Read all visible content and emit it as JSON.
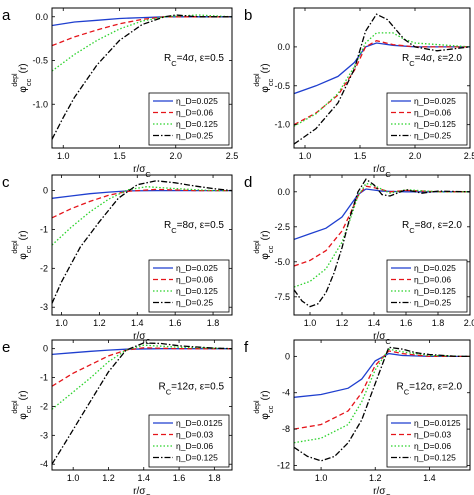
{
  "line_styles": {
    "solid": {
      "color": "#1f3fcf",
      "dash": ""
    },
    "dash": {
      "color": "#e5141a",
      "dash": "5,3"
    },
    "dot": {
      "color": "#2bd22b",
      "dash": "1.5,2"
    },
    "dashdot": {
      "color": "#000000",
      "dash": "6,2,1.5,2"
    }
  },
  "chart_data": [
    {
      "panel": "a",
      "type": "line",
      "xlabel": "r/σ_C",
      "ylabel": "φ_cc^depl(r)",
      "xlim": [
        0.9,
        2.5
      ],
      "ylim": [
        -1.5,
        0.1
      ],
      "xticks": [
        1.0,
        1.5,
        2.0,
        2.5
      ],
      "xtick_labels": [
        "1.0",
        "1.5",
        "2.0",
        "2.5"
      ],
      "yticks": [
        0.0,
        -0.5,
        -1.0
      ],
      "ytick_labels": [
        "0.0",
        "-0.5",
        "-1.0"
      ],
      "annotation": "R_C=4σ, ε=0.5",
      "legend_position": "lower-right",
      "series": [
        {
          "name": "η_D=0.025",
          "style": "solid",
          "x": [
            0.9,
            1.1,
            1.3,
            1.5,
            1.7,
            1.9,
            2.2,
            2.5
          ],
          "y": [
            -0.1,
            -0.06,
            -0.04,
            -0.02,
            -0.01,
            0.0,
            0.0,
            0.0
          ]
        },
        {
          "name": "η_D=0.06",
          "style": "dash",
          "x": [
            0.9,
            1.1,
            1.3,
            1.5,
            1.7,
            1.9,
            2.2,
            2.5
          ],
          "y": [
            -0.33,
            -0.23,
            -0.15,
            -0.08,
            -0.03,
            0.0,
            0.0,
            0.0
          ]
        },
        {
          "name": "η_D=0.125",
          "style": "dot",
          "x": [
            0.9,
            1.1,
            1.3,
            1.5,
            1.7,
            1.9,
            2.2,
            2.5
          ],
          "y": [
            -0.62,
            -0.43,
            -0.27,
            -0.14,
            -0.05,
            0.0,
            0.02,
            0.0
          ]
        },
        {
          "name": "η_D=0.25",
          "style": "dashdot",
          "x": [
            0.9,
            1.0,
            1.1,
            1.3,
            1.5,
            1.7,
            1.9,
            2.0,
            2.2,
            2.5
          ],
          "y": [
            -1.4,
            -1.15,
            -0.92,
            -0.55,
            -0.27,
            -0.09,
            0.0,
            0.02,
            0.0,
            0.0
          ]
        }
      ]
    },
    {
      "panel": "b",
      "type": "line",
      "xlabel": "r/σ_C",
      "ylabel": "φ_cc^depl(r)",
      "xlim": [
        0.9,
        2.5
      ],
      "ylim": [
        -1.3,
        0.5
      ],
      "xticks": [
        1.0,
        1.5,
        2.0,
        2.5
      ],
      "xtick_labels": [
        "1.0",
        "1.5",
        "2.0",
        "2.5"
      ],
      "yticks": [
        0.0,
        -0.5,
        -1.0
      ],
      "ytick_labels": [
        "0.0",
        "-0.5",
        "-1.0"
      ],
      "annotation": "R_C=4σ, ε=2.0",
      "legend_position": "lower-right",
      "series": [
        {
          "name": "η_D=0.025",
          "style": "solid",
          "x": [
            0.9,
            1.1,
            1.3,
            1.45,
            1.55,
            1.65,
            1.8,
            2.0,
            2.5
          ],
          "y": [
            -0.6,
            -0.5,
            -0.38,
            -0.2,
            0.0,
            0.05,
            0.02,
            0.0,
            0.0
          ]
        },
        {
          "name": "η_D=0.06",
          "style": "dash",
          "x": [
            0.9,
            1.1,
            1.3,
            1.45,
            1.55,
            1.65,
            1.8,
            2.0,
            2.5
          ],
          "y": [
            -1.0,
            -0.85,
            -0.62,
            -0.3,
            0.0,
            0.08,
            0.03,
            0.0,
            0.0
          ]
        },
        {
          "name": "η_D=0.125",
          "style": "dot",
          "x": [
            0.9,
            1.1,
            1.3,
            1.45,
            1.55,
            1.65,
            1.8,
            1.9,
            2.0,
            2.5
          ],
          "y": [
            -1.02,
            -0.86,
            -0.6,
            -0.25,
            0.05,
            0.18,
            0.18,
            0.1,
            0.05,
            0.0
          ]
        },
        {
          "name": "η_D=0.25",
          "style": "dashdot",
          "x": [
            0.9,
            1.1,
            1.3,
            1.45,
            1.55,
            1.65,
            1.75,
            1.9,
            2.0,
            2.2,
            2.5
          ],
          "y": [
            -1.25,
            -1.05,
            -0.72,
            -0.28,
            0.2,
            0.42,
            0.35,
            0.1,
            0.0,
            -0.05,
            0.0
          ]
        }
      ]
    },
    {
      "panel": "c",
      "type": "line",
      "xlabel": "r/σ_C",
      "ylabel": "φ_cc^depl(r)",
      "xlim": [
        0.95,
        1.9
      ],
      "ylim": [
        -3.2,
        0.4
      ],
      "xticks": [
        1.0,
        1.2,
        1.4,
        1.6,
        1.8
      ],
      "xtick_labels": [
        "1.0",
        "1.2",
        "1.4",
        "1.6",
        "1.8"
      ],
      "yticks": [
        0,
        -1,
        -2,
        -3
      ],
      "ytick_labels": [
        "0",
        "-1",
        "-2",
        "-3"
      ],
      "annotation": "R_C=8σ, ε=0.5",
      "legend_position": "lower-right",
      "series": [
        {
          "name": "η_D=0.025",
          "style": "solid",
          "x": [
            0.95,
            1.05,
            1.15,
            1.25,
            1.35,
            1.5,
            1.7,
            1.9
          ],
          "y": [
            -0.2,
            -0.14,
            -0.08,
            -0.04,
            -0.01,
            0.0,
            0.0,
            0.0
          ]
        },
        {
          "name": "η_D=0.06",
          "style": "dash",
          "x": [
            0.95,
            1.05,
            1.15,
            1.25,
            1.35,
            1.5,
            1.7,
            1.9
          ],
          "y": [
            -0.7,
            -0.47,
            -0.28,
            -0.12,
            -0.02,
            0.03,
            0.0,
            0.0
          ]
        },
        {
          "name": "η_D=0.125",
          "style": "dot",
          "x": [
            0.95,
            1.05,
            1.15,
            1.25,
            1.35,
            1.45,
            1.6,
            1.8,
            1.9
          ],
          "y": [
            -1.4,
            -0.95,
            -0.55,
            -0.22,
            0.02,
            0.1,
            0.05,
            0.0,
            0.0
          ]
        },
        {
          "name": "η_D=0.25",
          "style": "dashdot",
          "x": [
            0.95,
            1.0,
            1.05,
            1.1,
            1.2,
            1.3,
            1.4,
            1.5,
            1.6,
            1.7,
            1.8,
            1.9
          ],
          "y": [
            -2.9,
            -2.35,
            -1.9,
            -1.45,
            -0.8,
            -0.2,
            0.15,
            0.25,
            0.2,
            0.12,
            0.05,
            0.0
          ]
        }
      ]
    },
    {
      "panel": "d",
      "type": "line",
      "xlabel": "r/σ_C",
      "ylabel": "φ_cc^depl(r)",
      "xlim": [
        0.9,
        2.0
      ],
      "ylim": [
        -8.8,
        1.2
      ],
      "xticks": [
        1.0,
        1.2,
        1.4,
        1.6,
        1.8,
        2.0
      ],
      "xtick_labels": [
        "1.0",
        "1.2",
        "1.4",
        "1.6",
        "1.8",
        "2.0"
      ],
      "yticks": [
        0.0,
        -2.5,
        -5.0,
        -7.5
      ],
      "ytick_labels": [
        "0.0",
        "-2.5",
        "-5.0",
        "-7.5"
      ],
      "annotation": "R_C=8σ, ε=2.0",
      "legend_position": "lower-right",
      "series": [
        {
          "name": "η_D=0.025",
          "style": "solid",
          "x": [
            0.9,
            1.0,
            1.1,
            1.2,
            1.25,
            1.3,
            1.35,
            1.45,
            1.6,
            2.0
          ],
          "y": [
            -3.4,
            -3.0,
            -2.6,
            -1.8,
            -1.0,
            -0.2,
            0.2,
            0.05,
            0.0,
            0.0
          ]
        },
        {
          "name": "η_D=0.06",
          "style": "dash",
          "x": [
            0.9,
            1.0,
            1.1,
            1.2,
            1.25,
            1.3,
            1.35,
            1.4,
            1.5,
            1.6,
            1.8,
            2.0
          ],
          "y": [
            -5.3,
            -4.9,
            -4.2,
            -2.8,
            -1.6,
            -0.3,
            0.4,
            0.3,
            0.0,
            0.1,
            0.0,
            0.0
          ]
        },
        {
          "name": "η_D=0.125",
          "style": "dot",
          "x": [
            0.9,
            1.0,
            1.1,
            1.2,
            1.25,
            1.3,
            1.35,
            1.4,
            1.5,
            1.6,
            1.8,
            2.0
          ],
          "y": [
            -6.8,
            -6.4,
            -5.5,
            -3.6,
            -2.0,
            -0.3,
            0.6,
            0.45,
            -0.1,
            0.15,
            0.0,
            0.0
          ]
        },
        {
          "name": "η_D=0.25",
          "style": "dashdot",
          "x": [
            0.9,
            0.95,
            1.0,
            1.05,
            1.1,
            1.15,
            1.2,
            1.25,
            1.3,
            1.35,
            1.4,
            1.45,
            1.5,
            1.6,
            1.7,
            1.8,
            2.0
          ],
          "y": [
            -7.0,
            -7.8,
            -8.2,
            -8.0,
            -7.2,
            -5.8,
            -4.0,
            -1.8,
            0.0,
            0.9,
            0.5,
            -0.2,
            -0.3,
            0.15,
            -0.1,
            0.05,
            0.0
          ]
        }
      ]
    },
    {
      "panel": "e",
      "type": "line",
      "xlabel": "r/σ_C",
      "ylabel": "φ_cc^depl(r)",
      "xlim": [
        0.88,
        1.9
      ],
      "ylim": [
        -4.2,
        0.3
      ],
      "xticks": [
        1.0,
        1.2,
        1.4,
        1.6,
        1.8
      ],
      "xtick_labels": [
        "1.0",
        "1.2",
        "1.4",
        "1.6",
        "1.8"
      ],
      "yticks": [
        0,
        -1,
        -2,
        -3,
        -4
      ],
      "ytick_labels": [
        "0",
        "-1",
        "-2",
        "-3",
        "-4"
      ],
      "annotation": "R_C=12σ, ε=0.5",
      "legend_position": "lower-right",
      "series": [
        {
          "name": "η_D=0.0125",
          "style": "solid",
          "x": [
            0.88,
            1.0,
            1.1,
            1.2,
            1.3,
            1.5,
            1.9
          ],
          "y": [
            -0.2,
            -0.14,
            -0.09,
            -0.05,
            -0.02,
            0.0,
            0.0
          ]
        },
        {
          "name": "η_D=0.03",
          "style": "dash",
          "x": [
            0.88,
            1.0,
            1.1,
            1.2,
            1.3,
            1.4,
            1.6,
            1.9
          ],
          "y": [
            -1.3,
            -0.85,
            -0.55,
            -0.25,
            -0.05,
            0.03,
            0.0,
            0.0
          ]
        },
        {
          "name": "η_D=0.06",
          "style": "dot",
          "x": [
            0.88,
            1.0,
            1.1,
            1.2,
            1.3,
            1.4,
            1.6,
            1.9
          ],
          "y": [
            -2.1,
            -1.5,
            -1.0,
            -0.45,
            -0.05,
            0.12,
            0.05,
            0.0
          ]
        },
        {
          "name": "η_D=0.125",
          "style": "dashdot",
          "x": [
            0.88,
            0.95,
            1.0,
            1.05,
            1.1,
            1.2,
            1.3,
            1.4,
            1.5,
            1.6,
            1.8,
            1.9
          ],
          "y": [
            -4.0,
            -3.3,
            -2.8,
            -2.3,
            -1.8,
            -0.8,
            -0.05,
            0.2,
            0.18,
            0.1,
            0.02,
            0.0
          ]
        }
      ]
    },
    {
      "panel": "f",
      "type": "line",
      "xlabel": "r/σ_C",
      "ylabel": "φ_cc^depl(r)",
      "xlim": [
        0.9,
        1.55
      ],
      "ylim": [
        -12.5,
        1.8
      ],
      "xticks": [
        1.0,
        1.2,
        1.4
      ],
      "xtick_labels": [
        "1.0",
        "1.2",
        "1.4"
      ],
      "yticks": [
        0,
        -4,
        -8,
        -12
      ],
      "ytick_labels": [
        "0",
        "-4",
        "-8",
        "-12"
      ],
      "annotation": "R_C=12σ, ε=2.0",
      "legend_position": "lower-right",
      "series": [
        {
          "name": "η_D=0.0125",
          "style": "solid",
          "x": [
            0.9,
            1.0,
            1.1,
            1.15,
            1.2,
            1.25,
            1.3,
            1.4,
            1.55
          ],
          "y": [
            -4.5,
            -4.2,
            -3.5,
            -2.5,
            -0.5,
            0.3,
            0.1,
            0.0,
            0.0
          ]
        },
        {
          "name": "η_D=0.03",
          "style": "dash",
          "x": [
            0.9,
            1.0,
            1.1,
            1.15,
            1.2,
            1.25,
            1.3,
            1.4,
            1.55
          ],
          "y": [
            -8.0,
            -7.5,
            -6.0,
            -4.0,
            -1.0,
            0.6,
            0.3,
            0.0,
            0.0
          ]
        },
        {
          "name": "η_D=0.06",
          "style": "dot",
          "x": [
            0.9,
            1.0,
            1.1,
            1.15,
            1.2,
            1.25,
            1.3,
            1.4,
            1.55
          ],
          "y": [
            -9.5,
            -9.0,
            -7.5,
            -5.0,
            -1.5,
            0.8,
            0.5,
            0.1,
            0.0
          ]
        },
        {
          "name": "η_D=0.125",
          "style": "dashdot",
          "x": [
            0.9,
            0.95,
            1.0,
            1.05,
            1.1,
            1.15,
            1.2,
            1.25,
            1.3,
            1.35,
            1.4,
            1.5,
            1.55
          ],
          "y": [
            -10.0,
            -11.0,
            -11.5,
            -11.0,
            -9.5,
            -7.0,
            -3.0,
            1.0,
            0.8,
            0.4,
            0.2,
            0.0,
            0.0
          ]
        }
      ]
    }
  ]
}
